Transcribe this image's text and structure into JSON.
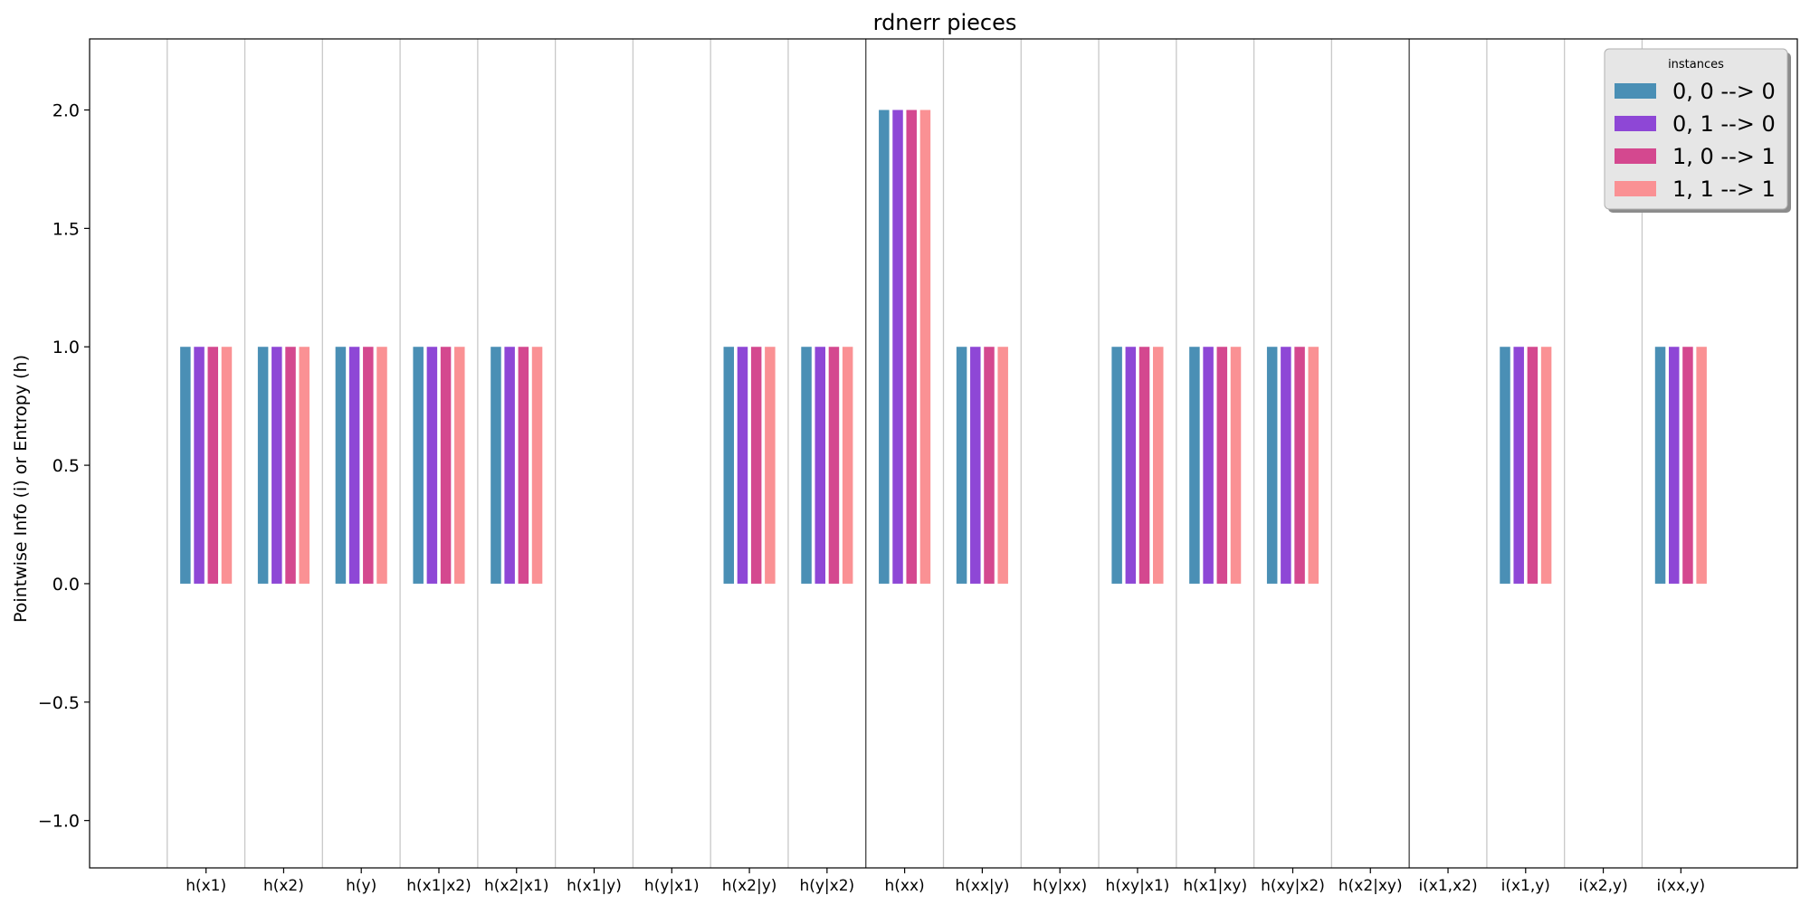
{
  "chart_data": {
    "type": "bar",
    "title": "rdnerr pieces",
    "xlabel": "",
    "ylabel": "Pointwise Info (i) or Entropy (h)",
    "ylim": [
      -1.2,
      2.3
    ],
    "yticks": [
      -1.0,
      -0.5,
      0.0,
      0.5,
      1.0,
      1.5,
      2.0
    ],
    "ytick_labels": [
      "−1.0",
      "−0.5",
      "0.0",
      "0.5",
      "1.0",
      "1.5",
      "2.0"
    ],
    "grid": "vertical lines between categories",
    "group_separators_after": [
      "h(y|x2)",
      "h(x2|xy)"
    ],
    "categories": [
      "h(x1)",
      "h(x2)",
      "h(y)",
      "h(x1|x2)",
      "h(x2|x1)",
      "h(x1|y)",
      "h(y|x1)",
      "h(x2|y)",
      "h(y|x2)",
      "h(xx)",
      "h(xx|y)",
      "h(y|xx)",
      "h(xy|x1)",
      "h(x1|xy)",
      "h(xy|x2)",
      "h(x2|xy)",
      "i(x1,x2)",
      "i(x1,y)",
      "i(x2,y)",
      "i(xx,y)"
    ],
    "legend": {
      "title": "instances",
      "position": "top-right"
    },
    "series": [
      {
        "name": "0, 0 --> 0",
        "color": "#4a8fb5",
        "values": [
          1,
          1,
          1,
          1,
          1,
          0,
          0,
          1,
          1,
          2,
          1,
          0,
          1,
          1,
          1,
          0,
          0,
          1,
          0,
          1
        ]
      },
      {
        "name": "0, 1 --> 0",
        "color": "#8e47d6",
        "values": [
          1,
          1,
          1,
          1,
          1,
          0,
          0,
          1,
          1,
          2,
          1,
          0,
          1,
          1,
          1,
          0,
          0,
          1,
          0,
          1
        ]
      },
      {
        "name": "1, 0 --> 1",
        "color": "#d4488f",
        "values": [
          1,
          1,
          1,
          1,
          1,
          0,
          0,
          1,
          1,
          2,
          1,
          0,
          1,
          1,
          1,
          0,
          0,
          1,
          0,
          1
        ]
      },
      {
        "name": "1, 1 --> 1",
        "color": "#fa9194",
        "values": [
          1,
          1,
          1,
          1,
          1,
          0,
          0,
          1,
          1,
          2,
          1,
          0,
          1,
          1,
          1,
          0,
          0,
          1,
          0,
          1
        ]
      }
    ]
  }
}
